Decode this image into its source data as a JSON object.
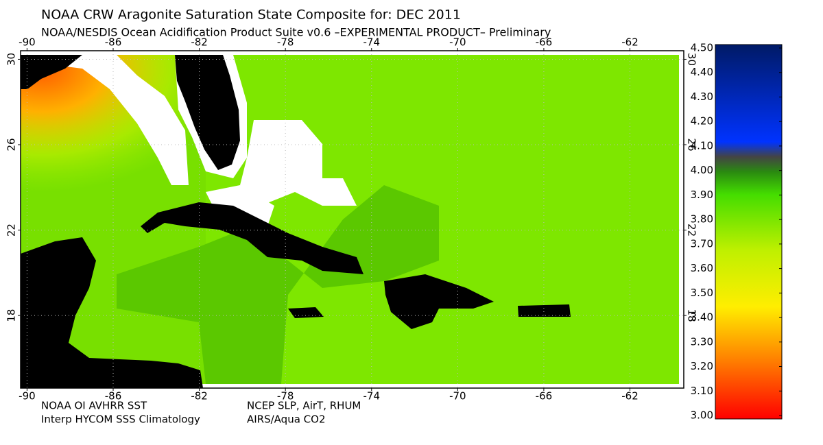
{
  "title": "NOAA CRW Aragonite Saturation State Composite for: DEC 2011",
  "subtitle": "NOAA/NESDIS Ocean Acidification Product Suite  v0.6 –EXPERIMENTAL PRODUCT–   Preliminary",
  "map": {
    "xlim": [
      -90.3,
      -59.5
    ],
    "ylim": [
      14.6,
      30.4
    ],
    "xticks": [
      -90,
      -86,
      -82,
      -78,
      -74,
      -70,
      -66,
      -62
    ],
    "yticks": [
      30,
      26,
      22,
      18
    ]
  },
  "colorbar": {
    "ticks": [
      {
        "value": 3.0,
        "label": "3.00"
      },
      {
        "value": 3.1,
        "label": "3.10"
      },
      {
        "value": 3.2,
        "label": "3.20"
      },
      {
        "value": 3.3,
        "label": "3.30"
      },
      {
        "value": 3.4,
        "label": "3.40"
      },
      {
        "value": 3.5,
        "label": "3.50"
      },
      {
        "value": 3.6,
        "label": "3.60"
      },
      {
        "value": 3.7,
        "label": "3.70"
      },
      {
        "value": 3.8,
        "label": "3.80"
      },
      {
        "value": 3.9,
        "label": "3.90"
      },
      {
        "value": 4.0,
        "label": "4.00"
      },
      {
        "value": 4.1,
        "label": "4.10"
      },
      {
        "value": 4.2,
        "label": "4.20"
      },
      {
        "value": 4.3,
        "label": "4.30"
      },
      {
        "value": 4.4,
        "label": "4.40"
      },
      {
        "value": 4.5,
        "label": "4.50"
      }
    ]
  },
  "footer": {
    "left": [
      "NOAA OI AVHRR SST",
      "Interp HYCOM SSS Climatology"
    ],
    "right": [
      "NCEP SLP, AirT, RHUM",
      "AIRS/Aqua CO2"
    ]
  }
}
